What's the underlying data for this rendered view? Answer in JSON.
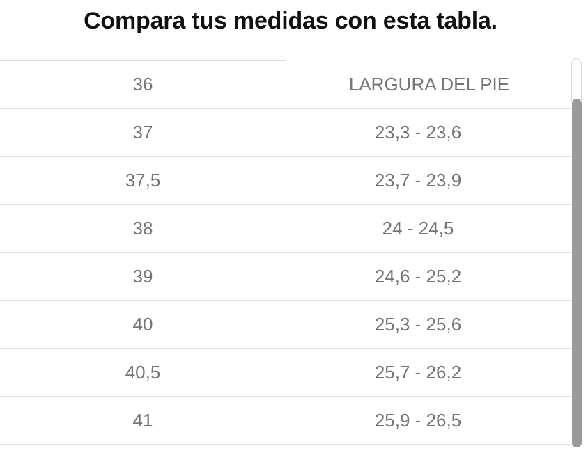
{
  "title": "Compara tus medidas con esta tabla.",
  "table": {
    "foot_length_header": "LARGURA DEL PIE",
    "rows": [
      {
        "left": "36",
        "right": "LARGURA DEL PIE"
      },
      {
        "left": "37",
        "right": "23,3 - 23,6"
      },
      {
        "left": "37,5",
        "right": "23,7 - 23,9"
      },
      {
        "left": "38",
        "right": "24 - 24,5"
      },
      {
        "left": "39",
        "right": "24,6 - 25,2"
      },
      {
        "left": "40",
        "right": "25,3 - 25,6"
      },
      {
        "left": "40,5",
        "right": "25,7 - 26,2"
      },
      {
        "left": "41",
        "right": "25,9 - 26,5"
      }
    ]
  },
  "scrollbar": {
    "orientation": "vertical"
  },
  "colors": {
    "title_text": "#111111",
    "cell_text": "#757575",
    "divider": "#e4e4e4",
    "top_border": "#dedede",
    "scrollbar_thumb": "#9a9a9a",
    "scrollbar_track_border": "#d9d9d9"
  }
}
